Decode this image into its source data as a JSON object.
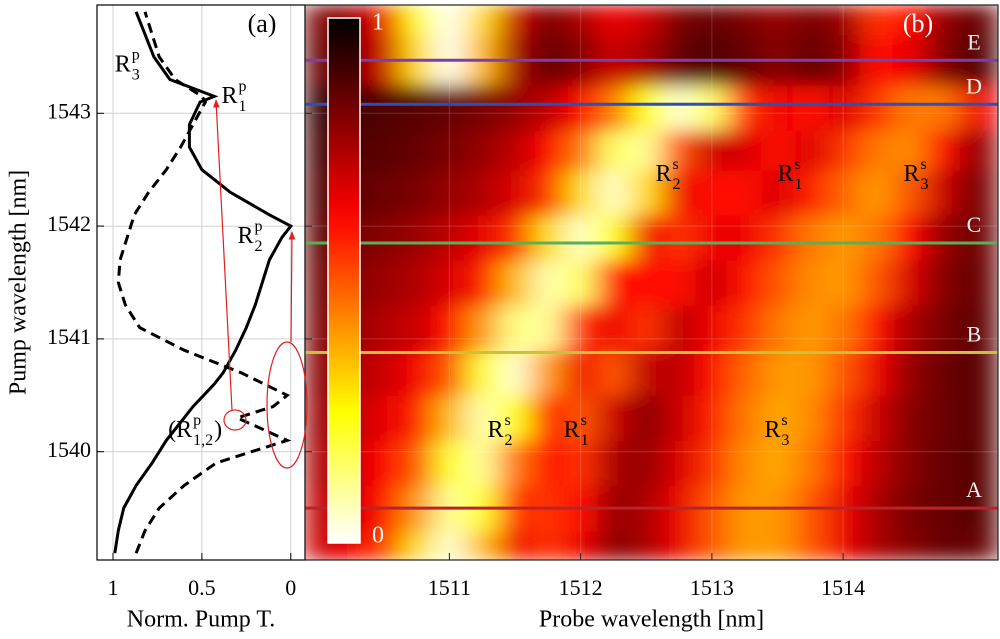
{
  "chart_data": [
    {
      "type": "line",
      "panel_label": "(a)",
      "xlabel": "Norm. Pump T.",
      "ylabel": "Pump wavelength [nm]",
      "xlim": [
        1.09,
        -0.08
      ],
      "xticks": [
        1,
        0.5,
        0
      ],
      "ylim": [
        1539.04,
        1543.96
      ],
      "yticks": [
        1540,
        1541,
        1542,
        1543
      ],
      "grid": true,
      "y": [
        1539.1,
        1539.3,
        1539.5,
        1539.7,
        1539.9,
        1540.1,
        1540.3,
        1540.4,
        1540.5,
        1540.6,
        1540.7,
        1540.9,
        1541.1,
        1541.3,
        1541.5,
        1541.7,
        1541.9,
        1542.0,
        1542.1,
        1542.3,
        1542.5,
        1542.7,
        1542.9,
        1543.1,
        1543.15,
        1543.3,
        1543.5,
        1543.7,
        1543.9
      ],
      "series": [
        {
          "color": "#000000",
          "style": "solid",
          "values": [
            0.99,
            0.97,
            0.94,
            0.87,
            0.78,
            0.7,
            0.6,
            0.55,
            0.49,
            0.43,
            0.38,
            0.31,
            0.25,
            0.2,
            0.16,
            0.12,
            0.05,
            0.0,
            0.12,
            0.34,
            0.5,
            0.57,
            0.57,
            0.51,
            0.43,
            0.68,
            0.77,
            0.82,
            0.87
          ]
        },
        {
          "color": "#000000",
          "style": "dashed",
          "values": [
            0.87,
            0.82,
            0.74,
            0.6,
            0.42,
            0.02,
            0.3,
            0.1,
            0.02,
            0.15,
            0.28,
            0.6,
            0.85,
            0.93,
            0.97,
            0.96,
            0.92,
            0.9,
            0.88,
            0.8,
            0.7,
            0.62,
            0.55,
            0.48,
            0.5,
            0.65,
            0.74,
            0.78,
            0.82
          ]
        }
      ],
      "annotations": [
        {
          "base": "R",
          "sup": "p",
          "sub": "3",
          "x": 0.99,
          "y": 1543.42
        },
        {
          "base": "R",
          "sup": "p",
          "sub": "1",
          "x": 0.39,
          "y": 1543.14
        },
        {
          "base": "R",
          "sup": "p",
          "sub": "2",
          "x": 0.3,
          "y": 1541.9
        },
        {
          "base": "(R",
          "sup": "p",
          "sub": "1,2",
          "after": ")",
          "x": 0.69,
          "y": 1540.18
        }
      ]
    },
    {
      "type": "heatmap",
      "panel_label": "(b)",
      "xlabel": "Probe wavelength [nm]",
      "colormap": "hot_r",
      "xlim": [
        1509.9,
        1515.18
      ],
      "xticks": [
        1511,
        1512,
        1513,
        1514
      ],
      "ylim": [
        1539.04,
        1543.96
      ],
      "yticks": [
        1540,
        1541,
        1542,
        1543
      ],
      "grid": true,
      "colorbar": {
        "lim": [
          0,
          1
        ],
        "ticks": [
          0,
          1
        ]
      },
      "x": [
        1510,
        1510.25,
        1510.5,
        1510.75,
        1511,
        1511.25,
        1511.5,
        1511.75,
        1512,
        1512.25,
        1512.5,
        1512.75,
        1513,
        1513.25,
        1513.5,
        1513.75,
        1514,
        1514.25,
        1514.5,
        1514.75,
        1515
      ],
      "y": [
        1539.1,
        1539.5,
        1539.9,
        1540.3,
        1540.7,
        1541.1,
        1541.5,
        1541.9,
        1542.3,
        1542.7,
        1543.0,
        1543.5,
        1543.9
      ],
      "values": [
        [
          0.7,
          0.65,
          0.55,
          0.3,
          0.05,
          0.35,
          0.65,
          0.55,
          0.65,
          0.8,
          0.75,
          0.65,
          0.5,
          0.4,
          0.4,
          0.5,
          0.65,
          0.75,
          0.8,
          0.85,
          0.85
        ],
        [
          0.72,
          0.68,
          0.6,
          0.4,
          0.1,
          0.2,
          0.55,
          0.55,
          0.6,
          0.78,
          0.75,
          0.65,
          0.5,
          0.4,
          0.4,
          0.5,
          0.65,
          0.75,
          0.82,
          0.85,
          0.87
        ],
        [
          0.75,
          0.7,
          0.62,
          0.5,
          0.2,
          0.1,
          0.45,
          0.6,
          0.55,
          0.75,
          0.78,
          0.68,
          0.55,
          0.42,
          0.38,
          0.45,
          0.6,
          0.72,
          0.8,
          0.85,
          0.87
        ],
        [
          0.78,
          0.72,
          0.66,
          0.58,
          0.35,
          0.08,
          0.25,
          0.6,
          0.5,
          0.7,
          0.8,
          0.7,
          0.58,
          0.45,
          0.38,
          0.42,
          0.55,
          0.7,
          0.8,
          0.84,
          0.87
        ],
        [
          0.8,
          0.75,
          0.7,
          0.64,
          0.5,
          0.2,
          0.05,
          0.4,
          0.65,
          0.5,
          0.72,
          0.72,
          0.6,
          0.48,
          0.4,
          0.4,
          0.5,
          0.65,
          0.78,
          0.84,
          0.87
        ],
        [
          0.82,
          0.78,
          0.74,
          0.7,
          0.6,
          0.4,
          0.12,
          0.1,
          0.55,
          0.65,
          0.55,
          0.72,
          0.65,
          0.55,
          0.45,
          0.4,
          0.45,
          0.6,
          0.75,
          0.82,
          0.86
        ],
        [
          0.84,
          0.8,
          0.77,
          0.74,
          0.68,
          0.58,
          0.35,
          0.08,
          0.15,
          0.6,
          0.6,
          0.6,
          0.7,
          0.6,
          0.5,
          0.42,
          0.4,
          0.5,
          0.68,
          0.8,
          0.85
        ],
        [
          0.86,
          0.83,
          0.8,
          0.77,
          0.72,
          0.66,
          0.55,
          0.3,
          0.06,
          0.25,
          0.65,
          0.55,
          0.65,
          0.65,
          0.55,
          0.45,
          0.4,
          0.45,
          0.62,
          0.78,
          0.84
        ],
        [
          0.88,
          0.86,
          0.84,
          0.82,
          0.78,
          0.74,
          0.68,
          0.55,
          0.3,
          0.06,
          0.3,
          0.65,
          0.6,
          0.6,
          0.68,
          0.58,
          0.48,
          0.4,
          0.5,
          0.7,
          0.82
        ],
        [
          0.9,
          0.88,
          0.87,
          0.85,
          0.82,
          0.78,
          0.72,
          0.62,
          0.45,
          0.15,
          0.1,
          0.5,
          0.7,
          0.68,
          0.6,
          0.68,
          0.55,
          0.45,
          0.42,
          0.6,
          0.78
        ],
        [
          0.92,
          0.9,
          0.88,
          0.87,
          0.85,
          0.82,
          0.78,
          0.72,
          0.62,
          0.45,
          0.25,
          0.05,
          0.15,
          0.55,
          0.65,
          0.6,
          0.68,
          0.55,
          0.45,
          0.45,
          0.65
        ],
        [
          0.85,
          0.8,
          0.7,
          0.3,
          0.02,
          0.35,
          0.75,
          0.85,
          0.8,
          0.7,
          0.75,
          0.85,
          0.88,
          0.85,
          0.8,
          0.85,
          0.8,
          0.6,
          0.65,
          0.8,
          0.88
        ],
        [
          0.82,
          0.78,
          0.65,
          0.25,
          0.02,
          0.3,
          0.7,
          0.82,
          0.75,
          0.65,
          0.7,
          0.82,
          0.85,
          0.82,
          0.78,
          0.82,
          0.78,
          0.55,
          0.6,
          0.78,
          0.85
        ]
      ],
      "lines": [
        {
          "label": "A",
          "y": 1539.5,
          "color": "#b8242a"
        },
        {
          "label": "B",
          "y": 1540.88,
          "color": "#c9c23a"
        },
        {
          "label": "C",
          "y": 1541.85,
          "color": "#58b15a"
        },
        {
          "label": "D",
          "y": 1543.08,
          "color": "#2f4fb8"
        },
        {
          "label": "E",
          "y": 1543.47,
          "color": "#7b3fa8"
        }
      ],
      "annotations": [
        {
          "base": "R",
          "sup": "s",
          "sub": "2",
          "x": 1512.57,
          "y": 1542.45
        },
        {
          "base": "R",
          "sup": "s",
          "sub": "1",
          "x": 1513.5,
          "y": 1542.45
        },
        {
          "base": "R",
          "sup": "s",
          "sub": "3",
          "x": 1514.46,
          "y": 1542.45
        },
        {
          "base": "R",
          "sup": "s",
          "sub": "2",
          "x": 1511.29,
          "y": 1540.18
        },
        {
          "base": "R",
          "sup": "s",
          "sub": "1",
          "x": 1511.87,
          "y": 1540.18
        },
        {
          "base": "R",
          "sup": "s",
          "sub": "3",
          "x": 1513.4,
          "y": 1540.18
        }
      ]
    }
  ]
}
